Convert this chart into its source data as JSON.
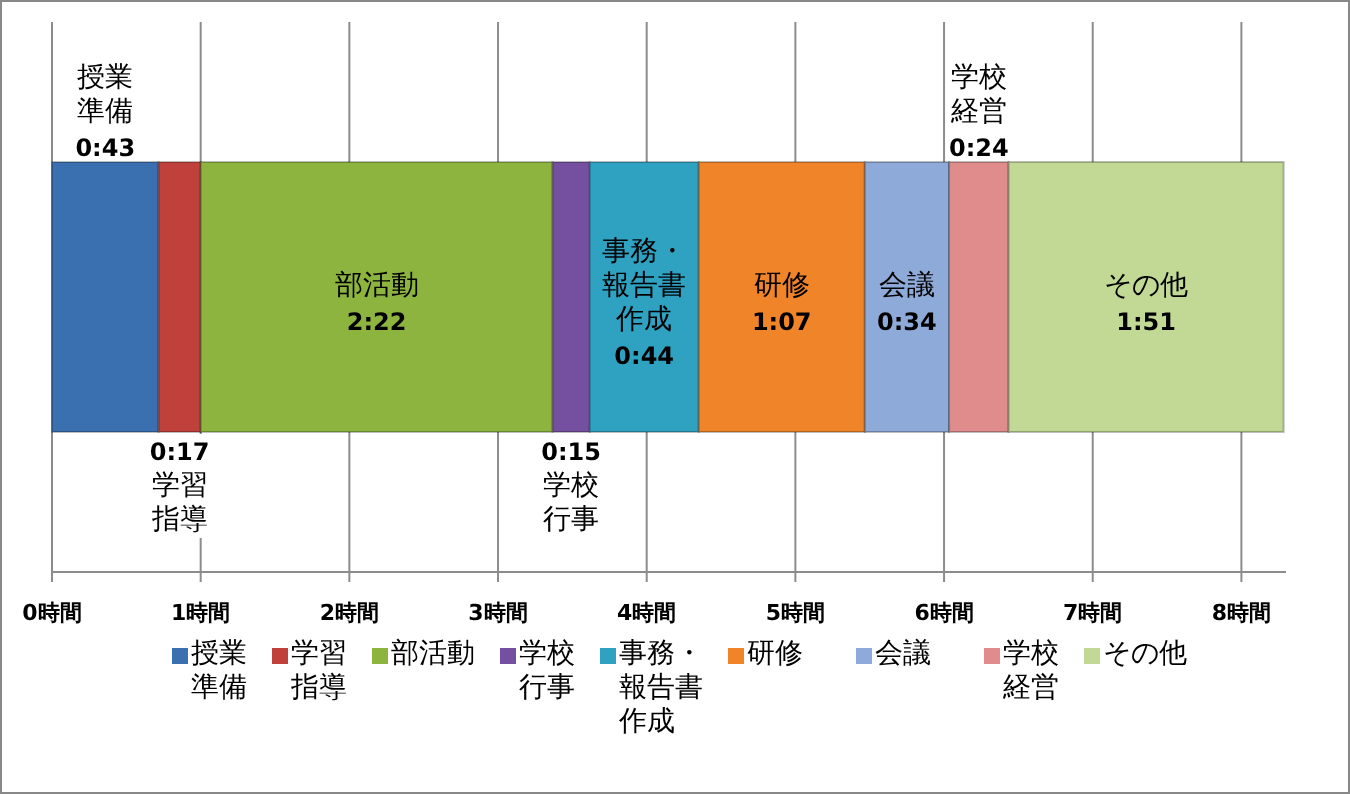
{
  "chart_data": {
    "type": "bar",
    "orientation": "horizontal",
    "stacked": true,
    "categories": [
      null
    ],
    "series": [
      {
        "name": "授業準備",
        "color": "#3a6fb0",
        "values": [
          0.717
        ],
        "value_labels": [
          "0:43"
        ]
      },
      {
        "name": "学習指導",
        "color": "#c0403c",
        "values": [
          0.283
        ],
        "value_labels": [
          "0:17"
        ]
      },
      {
        "name": "部活動",
        "color": "#8db43e",
        "values": [
          2.367
        ],
        "value_labels": [
          "2:22"
        ]
      },
      {
        "name": "学校行事",
        "color": "#7650a0",
        "values": [
          0.25
        ],
        "value_labels": [
          "0:15"
        ]
      },
      {
        "name": "事務・報告書作成",
        "color": "#2fa2c2",
        "values": [
          0.733
        ],
        "value_labels": [
          "0:44"
        ]
      },
      {
        "name": "研修",
        "color": "#f08428",
        "values": [
          1.117
        ],
        "value_labels": [
          "1:07"
        ]
      },
      {
        "name": "会議",
        "color": "#8eaad8",
        "values": [
          0.567
        ],
        "value_labels": [
          "0:34"
        ]
      },
      {
        "name": "学校経営",
        "color": "#e08c8c",
        "values": [
          0.4
        ],
        "value_labels": [
          "0:24"
        ]
      },
      {
        "name": "その他",
        "color": "#c2d995",
        "values": [
          1.85
        ],
        "value_labels": [
          "1:51"
        ]
      }
    ],
    "xlim": [
      0,
      8.3
    ],
    "xticks": [
      {
        "value": 0,
        "label": "0時間"
      },
      {
        "value": 1,
        "label": "1時間"
      },
      {
        "value": 2,
        "label": "2時間"
      },
      {
        "value": 3,
        "label": "3時間"
      },
      {
        "value": 4,
        "label": "4時間"
      },
      {
        "value": 5,
        "label": "5時間"
      },
      {
        "value": 6,
        "label": "6時間"
      },
      {
        "value": 7,
        "label": "7時間"
      },
      {
        "value": 8,
        "label": "8時間"
      }
    ],
    "grid": "x",
    "legend": "bottom"
  }
}
